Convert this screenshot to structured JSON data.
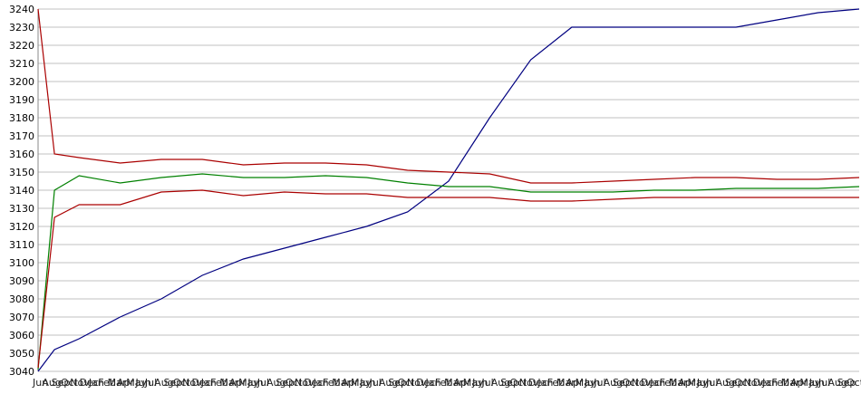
{
  "chart_data": {
    "type": "line",
    "title": "",
    "xlabel": "",
    "ylabel": "",
    "ylim": [
      3040,
      3240
    ],
    "y_ticks": [
      3040,
      3050,
      3060,
      3070,
      3080,
      3090,
      3100,
      3110,
      3120,
      3130,
      3140,
      3150,
      3160,
      3170,
      3180,
      3190,
      3200,
      3210,
      3220,
      3230,
      3240
    ],
    "x_tick_labels": [
      "Jun",
      "Aug",
      "Sep",
      "Oct",
      "Nov",
      "Dec",
      "Jan",
      "Feb",
      "Mar",
      "Apr",
      "May",
      "Jun",
      "Jul",
      "Aug",
      "Sep",
      "Oct",
      "Nov",
      "Dec",
      "Jan",
      "Feb",
      "Mar",
      "Apr",
      "May",
      "Jun",
      "Jul",
      "Aug",
      "Sep",
      "Oct",
      "Nov",
      "Dec",
      "Jan",
      "Feb",
      "Mar",
      "Apr",
      "May",
      "Jun",
      "Jul",
      "Aug",
      "Sep",
      "Oct",
      "Nov",
      "Dec",
      "Jan",
      "Feb",
      "Mar",
      "Apr",
      "May",
      "Jun",
      "Jul",
      "Aug",
      "Sep",
      "Oct",
      "Nov",
      "Dec",
      "Jan",
      "Feb",
      "Mar",
      "Apr",
      "May",
      "Jun",
      "Jul",
      "Aug",
      "Sep",
      "Oct",
      "Nov",
      "Dec",
      "Jan",
      "Feb",
      "Mar",
      "Apr",
      "May",
      "Jun",
      "Jul",
      "Aug",
      "Sep",
      "Oct",
      "Nov",
      "Dec",
      "Jan",
      "Feb",
      "Mar",
      "Apr",
      "May",
      "Jun",
      "Jul",
      "Aug",
      "Sep",
      "Oct"
    ],
    "grid": true,
    "legend": "none",
    "x": [
      0,
      0.02,
      0.05,
      0.1,
      0.15,
      0.2,
      0.25,
      0.3,
      0.35,
      0.4,
      0.45,
      0.5,
      0.55,
      0.6,
      0.65,
      0.7,
      0.75,
      0.8,
      0.85,
      0.9,
      0.95,
      1.0
    ],
    "series": [
      {
        "color": "#000080",
        "values": [
          3040,
          3052,
          3058,
          3070,
          3080,
          3093,
          3102,
          3108,
          3114,
          3120,
          3128,
          3145,
          3180,
          3212,
          3230,
          3230,
          3230,
          3230,
          3230,
          3234,
          3238,
          3240
        ]
      },
      {
        "color": "#008000",
        "values": [
          3041,
          3140,
          3148,
          3144,
          3147,
          3149,
          3147,
          3147,
          3148,
          3147,
          3144,
          3142,
          3142,
          3139,
          3139,
          3139,
          3140,
          3140,
          3141,
          3141,
          3141,
          3142
        ]
      },
      {
        "color": "#aa0000",
        "values": [
          3240,
          3160,
          3158,
          3155,
          3157,
          3157,
          3154,
          3155,
          3155,
          3154,
          3151,
          3150,
          3149,
          3144,
          3144,
          3145,
          3146,
          3147,
          3147,
          3146,
          3146,
          3147
        ]
      },
      {
        "color": "#aa0000",
        "values": [
          3042,
          3125,
          3132,
          3132,
          3139,
          3140,
          3137,
          3139,
          3138,
          3138,
          3136,
          3136,
          3136,
          3134,
          3134,
          3135,
          3136,
          3136,
          3136,
          3136,
          3136,
          3136
        ]
      }
    ]
  }
}
